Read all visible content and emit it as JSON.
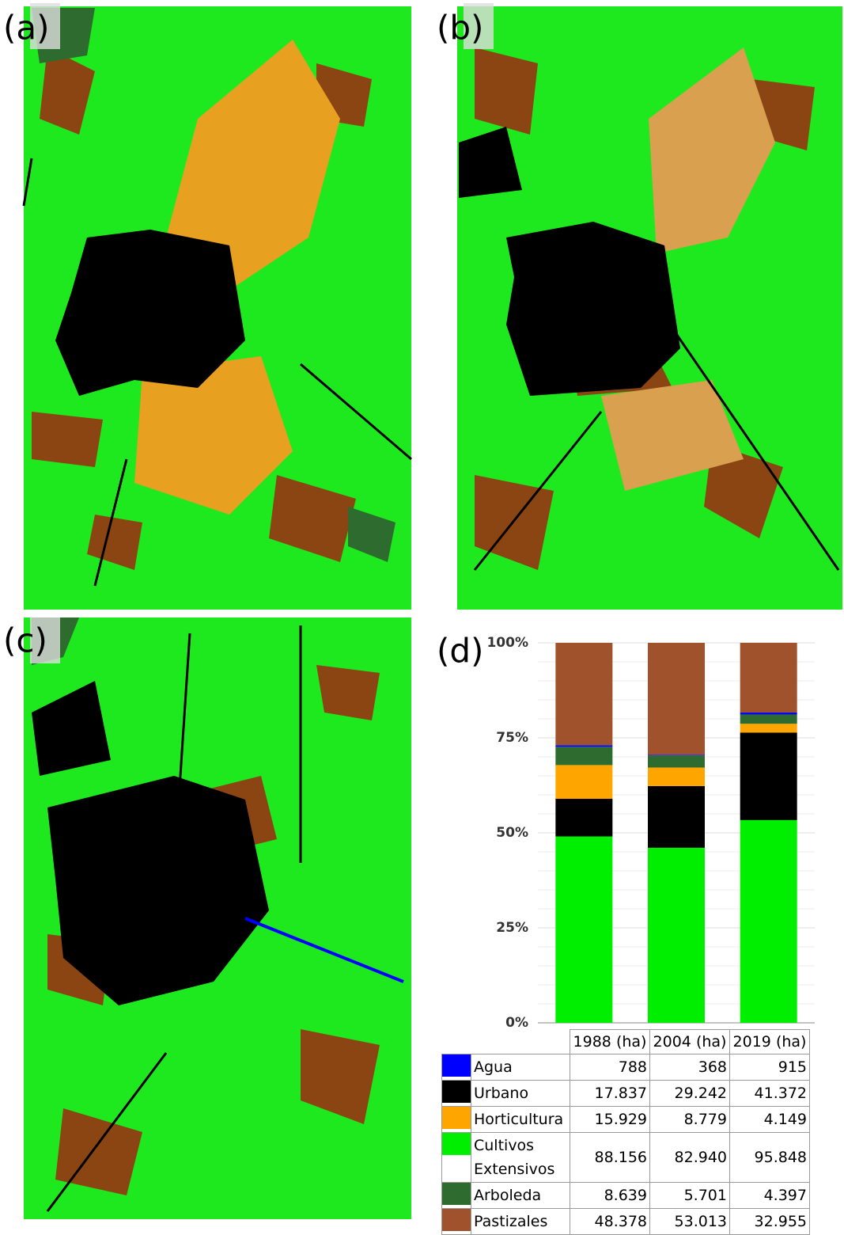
{
  "panels": [
    "(a)",
    "(b)",
    "(c)",
    "(d)"
  ],
  "chart_data": {
    "type": "stacked_bar",
    "categories": [
      null,
      null,
      null
    ],
    "ylim": [
      0,
      100
    ],
    "yticks": [
      {
        "value": 0,
        "label": "0%"
      },
      {
        "value": 25,
        "label": "25%"
      },
      {
        "value": 50,
        "label": "50%"
      },
      {
        "value": 75,
        "label": "75%"
      },
      {
        "value": 100,
        "label": "100%"
      }
    ],
    "grid": true,
    "series": [
      {
        "name": "Agua",
        "color": "#0000ff",
        "values": [
          0.44,
          0.2,
          0.51
        ]
      },
      {
        "name": "Urbano",
        "color": "#000000",
        "values": [
          9.92,
          16.24,
          23.03
        ]
      },
      {
        "name": "Horticultura",
        "color": "#ffa500",
        "values": [
          8.86,
          4.88,
          2.31
        ]
      },
      {
        "name": "Cultivos Extensivos",
        "color": "#00ee00",
        "values": [
          49.05,
          46.07,
          53.36
        ]
      },
      {
        "name": "Arboleda",
        "color": "#2e6b2e",
        "values": [
          4.81,
          3.17,
          2.45
        ]
      },
      {
        "name": "Pastizales",
        "color": "#a0522d",
        "values": [
          26.92,
          29.44,
          18.35
        ]
      }
    ],
    "table": {
      "columns": [
        "1988 (ha)",
        "2004 (ha)",
        "2019 (ha)"
      ],
      "rows": [
        [
          "788",
          "368",
          "915"
        ],
        [
          "17.837",
          "29.242",
          "41.372"
        ],
        [
          "15.929",
          "8.779",
          "4.149"
        ],
        [
          "88.156",
          "82.940",
          "95.848"
        ],
        [
          "8.639",
          "5.701",
          "4.397"
        ],
        [
          "48.378",
          "53.013",
          "32.955"
        ]
      ]
    }
  }
}
